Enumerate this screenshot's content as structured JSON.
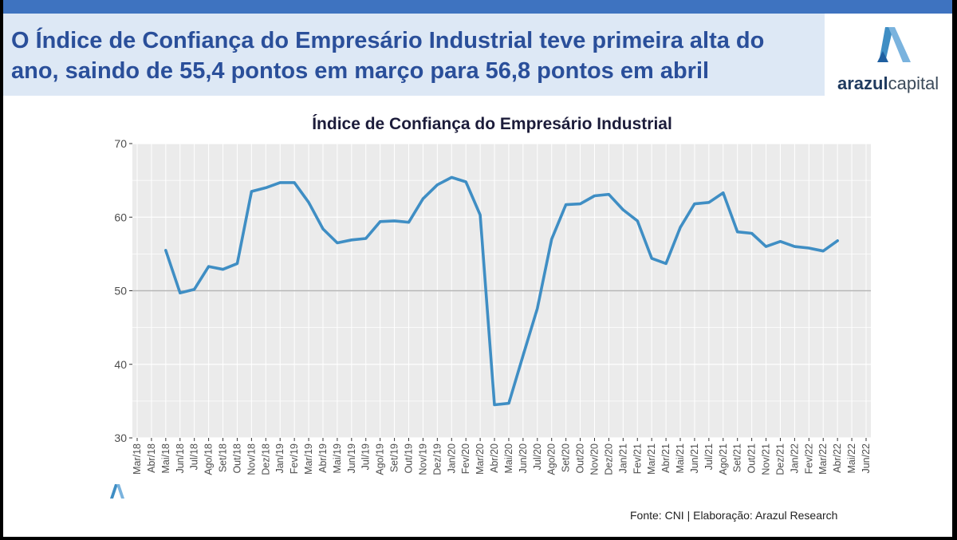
{
  "header": {
    "headline": "O Índice de Confiança do Empresário Industrial teve primeira alta do ano, saindo de 55,4 pontos em março para 56,8 pontos em abril",
    "logo_bold": "arazul",
    "logo_light": "capital"
  },
  "footer": {
    "source": "Fonte: CNI | Elaboração: Arazul Research"
  },
  "colors": {
    "accent": "#3e73c0",
    "line": "#3f8ec4",
    "headline": "#2a4f9a"
  },
  "chart_data": {
    "type": "line",
    "title": "Índice de Confiança do Empresário Industrial",
    "xlabel": "",
    "ylabel": "",
    "ylim": [
      30,
      70
    ],
    "yticks": [
      30,
      40,
      50,
      60,
      70
    ],
    "reference_line": 50,
    "grid": true,
    "legend": "none",
    "categories": [
      "Mar/18",
      "Abr/18",
      "Mai/18",
      "Jun/18",
      "Jul/18",
      "Ago/18",
      "Set/18",
      "Out/18",
      "Nov/18",
      "Dez/18",
      "Jan/19",
      "Fev/19",
      "Mar/19",
      "Abr/19",
      "Mai/19",
      "Jun/19",
      "Jul/19",
      "Ago/19",
      "Set/19",
      "Out/19",
      "Nov/19",
      "Dez/19",
      "Jan/20",
      "Fev/20",
      "Mar/20",
      "Abr/20",
      "Mai/20",
      "Jun/20",
      "Jul/20",
      "Ago/20",
      "Set/20",
      "Out/20",
      "Nov/20",
      "Dez/20",
      "Jan/21",
      "Fev/21",
      "Mar/21",
      "Abr/21",
      "Mai/21",
      "Jun/21",
      "Jul/21",
      "Ago/21",
      "Set/21",
      "Out/21",
      "Nov/21",
      "Dez/21",
      "Jan/22",
      "Fev/22",
      "Mar/22",
      "Abr/22",
      "Mai/22",
      "Jun/22"
    ],
    "series": [
      {
        "values": [
          null,
          null,
          55.5,
          49.7,
          50.2,
          53.3,
          52.9,
          53.7,
          63.5,
          64.0,
          64.7,
          64.7,
          62.0,
          58.4,
          56.5,
          56.9,
          57.1,
          59.4,
          59.5,
          59.3,
          62.5,
          64.4,
          65.4,
          64.8,
          60.3,
          34.5,
          34.7,
          41.2,
          47.6,
          57.0,
          61.7,
          61.8,
          62.9,
          63.1,
          61.0,
          59.5,
          54.4,
          53.7,
          58.6,
          61.8,
          62.0,
          63.3,
          58.0,
          57.8,
          56.0,
          56.7,
          56.0,
          55.8,
          55.4,
          56.8,
          null,
          null
        ]
      }
    ]
  }
}
